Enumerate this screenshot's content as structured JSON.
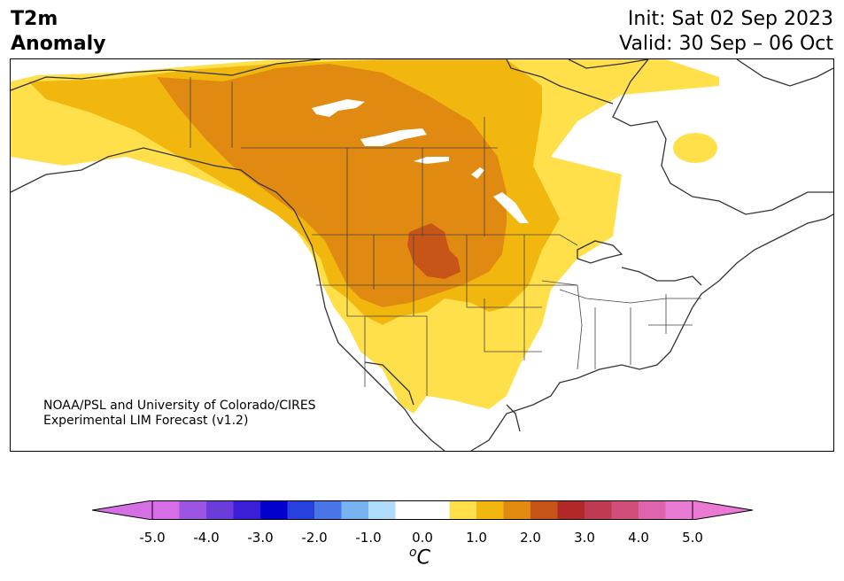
{
  "header": {
    "title_line1": "T2m",
    "title_line2": "Anomaly",
    "init": "Init: Sat 02 Sep 2023",
    "valid": "Valid: 30 Sep – 06 Oct"
  },
  "credit": {
    "line1": "NOAA/PSL and University of Colorado/CIRES",
    "line2": "Experimental LIM Forecast (v1.2)"
  },
  "colorbar": {
    "unit": "C",
    "unit_prefix": "o",
    "tick_labels": [
      "-5.0",
      "-4.0",
      "-3.0",
      "-2.0",
      "-1.0",
      "0.0",
      "1.0",
      "2.0",
      "3.0",
      "4.0",
      "5.0"
    ],
    "colors": [
      "#d66ee6",
      "#9b55e0",
      "#6a3ddb",
      "#3a1fd6",
      "#0000cc",
      "#2840dc",
      "#4a75e6",
      "#78b2f0",
      "#aedcfa",
      "#ffffff",
      "#ffffff",
      "#ffe04a",
      "#f2b70f",
      "#e08a12",
      "#c85518",
      "#b02828",
      "#c03a50",
      "#cf4e7a",
      "#de64ad",
      "#e97ad4"
    ],
    "under_color": "#d66ee6",
    "over_color": "#e97ad4"
  },
  "legend_levels": {
    "level1": "1.0",
    "level2": "2.0",
    "level3": "2.5"
  },
  "colors": {
    "level1": "#ffe04a",
    "level2": "#f2b70f",
    "level3": "#e08a12",
    "level4": "#c85518"
  }
}
